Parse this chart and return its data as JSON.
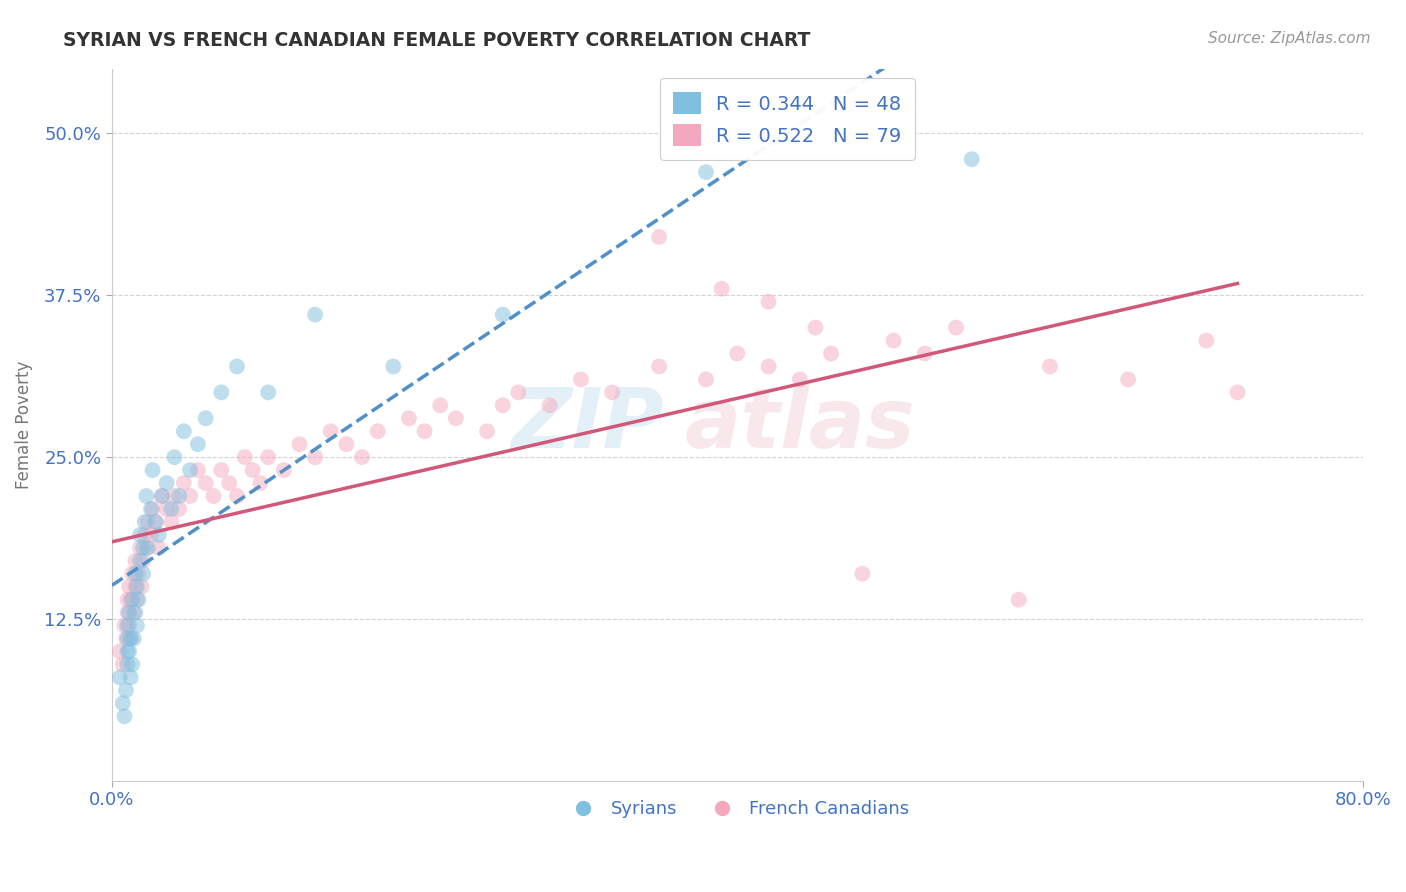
{
  "title": "SYRIAN VS FRENCH CANADIAN FEMALE POVERTY CORRELATION CHART",
  "source": "Source: ZipAtlas.com",
  "xlabel": "",
  "ylabel": "Female Poverty",
  "xlim": [
    0.0,
    0.8
  ],
  "ylim": [
    0.0,
    0.55
  ],
  "yticks": [
    0.125,
    0.25,
    0.375,
    0.5
  ],
  "ytick_labels": [
    "12.5%",
    "25.0%",
    "37.5%",
    "50.0%"
  ],
  "xticks": [
    0.0,
    0.8
  ],
  "xtick_labels": [
    "0.0%",
    "80.0%"
  ],
  "r_syrian": 0.344,
  "n_syrian": 48,
  "r_french": 0.522,
  "n_french": 79,
  "color_syrian": "#7fbfdf",
  "color_french": "#f4a8be",
  "color_syrian_line": "#5090c8",
  "color_french_line": "#d05878",
  "color_text_blue": "#4472c4",
  "background_color": "#ffffff",
  "grid_color": "#c8c8c8",
  "syrian_x": [
    0.005,
    0.007,
    0.008,
    0.009,
    0.01,
    0.01,
    0.01,
    0.01,
    0.011,
    0.011,
    0.012,
    0.012,
    0.013,
    0.013,
    0.014,
    0.015,
    0.015,
    0.016,
    0.016,
    0.017,
    0.018,
    0.018,
    0.02,
    0.02,
    0.021,
    0.022,
    0.023,
    0.025,
    0.026,
    0.028,
    0.03,
    0.032,
    0.035,
    0.038,
    0.04,
    0.043,
    0.046,
    0.05,
    0.055,
    0.06,
    0.07,
    0.08,
    0.1,
    0.13,
    0.18,
    0.25,
    0.38,
    0.55
  ],
  "syrian_y": [
    0.08,
    0.06,
    0.05,
    0.07,
    0.09,
    0.1,
    0.11,
    0.12,
    0.1,
    0.13,
    0.08,
    0.11,
    0.09,
    0.14,
    0.11,
    0.13,
    0.16,
    0.12,
    0.15,
    0.14,
    0.17,
    0.19,
    0.18,
    0.16,
    0.2,
    0.22,
    0.18,
    0.21,
    0.24,
    0.2,
    0.19,
    0.22,
    0.23,
    0.21,
    0.25,
    0.22,
    0.27,
    0.24,
    0.26,
    0.28,
    0.3,
    0.32,
    0.3,
    0.36,
    0.32,
    0.36,
    0.47,
    0.48
  ],
  "french_x": [
    0.005,
    0.007,
    0.008,
    0.009,
    0.01,
    0.01,
    0.011,
    0.011,
    0.012,
    0.012,
    0.013,
    0.014,
    0.015,
    0.015,
    0.016,
    0.017,
    0.018,
    0.019,
    0.02,
    0.021,
    0.022,
    0.023,
    0.025,
    0.026,
    0.028,
    0.03,
    0.032,
    0.035,
    0.038,
    0.04,
    0.043,
    0.046,
    0.05,
    0.055,
    0.06,
    0.065,
    0.07,
    0.075,
    0.08,
    0.085,
    0.09,
    0.095,
    0.1,
    0.11,
    0.12,
    0.13,
    0.14,
    0.15,
    0.16,
    0.17,
    0.19,
    0.2,
    0.21,
    0.22,
    0.24,
    0.25,
    0.26,
    0.28,
    0.3,
    0.32,
    0.35,
    0.38,
    0.4,
    0.42,
    0.44,
    0.46,
    0.5,
    0.52,
    0.54,
    0.58,
    0.6,
    0.65,
    0.7,
    0.72,
    0.39,
    0.45,
    0.42,
    0.48,
    0.35
  ],
  "french_y": [
    0.1,
    0.09,
    0.12,
    0.11,
    0.13,
    0.14,
    0.12,
    0.15,
    0.11,
    0.14,
    0.16,
    0.13,
    0.15,
    0.17,
    0.14,
    0.16,
    0.18,
    0.15,
    0.17,
    0.19,
    0.18,
    0.2,
    0.19,
    0.21,
    0.2,
    0.18,
    0.22,
    0.21,
    0.2,
    0.22,
    0.21,
    0.23,
    0.22,
    0.24,
    0.23,
    0.22,
    0.24,
    0.23,
    0.22,
    0.25,
    0.24,
    0.23,
    0.25,
    0.24,
    0.26,
    0.25,
    0.27,
    0.26,
    0.25,
    0.27,
    0.28,
    0.27,
    0.29,
    0.28,
    0.27,
    0.29,
    0.3,
    0.29,
    0.31,
    0.3,
    0.32,
    0.31,
    0.33,
    0.32,
    0.31,
    0.33,
    0.34,
    0.33,
    0.35,
    0.14,
    0.32,
    0.31,
    0.34,
    0.3,
    0.38,
    0.35,
    0.37,
    0.16,
    0.42
  ]
}
